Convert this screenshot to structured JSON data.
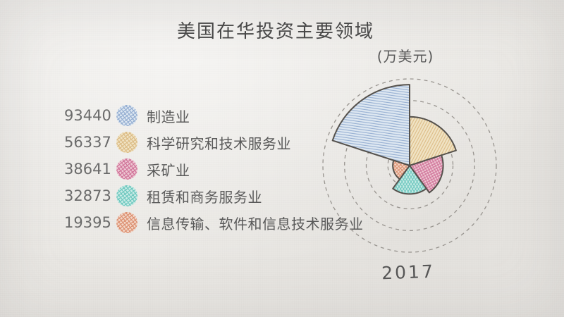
{
  "header": {
    "title": "美国在华投资主要领域",
    "unit_label": "(万美元)",
    "year_label": "2017"
  },
  "colors": {
    "background_paper": "#eae8e4",
    "text_primary": "#474747",
    "text_secondary": "#6b6b6b",
    "wedge_outline": "#55514c",
    "grid_ring": "#98948f"
  },
  "chart_data": {
    "type": "pie",
    "subtype": "nightingale-rose",
    "title": "美国在华投资主要领域",
    "unit": "万美元",
    "year": "2017",
    "legend_position": "left",
    "grid": "dashed-concentric-circles",
    "start_angle_deg": 162,
    "sector_angle_deg": 72,
    "clockwise": true,
    "radial_axis": {
      "max": 100000,
      "interval": 25000,
      "rings": [
        25000,
        50000,
        75000,
        100000
      ],
      "max_radius_px": 123
    },
    "categories": [
      "制造业",
      "科学研究和技术服务业",
      "采矿业",
      "租赁和商务服务业",
      "信息传输、软件和信息技术服务业"
    ],
    "values": [
      93440,
      56337,
      38641,
      32873,
      19395
    ],
    "series": [
      {
        "label": "制造业",
        "value": 93440,
        "base_color": "#dde7f1",
        "hatch_color": "#96afd2",
        "hatch_angles": [
          8
        ]
      },
      {
        "label": "科学研究和技术服务业",
        "value": 56337,
        "base_color": "#f0e3c4",
        "hatch_color": "#dcbc86",
        "hatch_angles": [
          -62
        ]
      },
      {
        "label": "采矿业",
        "value": 38641,
        "base_color": "#edc6d2",
        "hatch_color": "#d1769b",
        "hatch_angles": [
          62,
          -28
        ]
      },
      {
        "label": "租赁和商务服务业",
        "value": 32873,
        "base_color": "#c9ebe6",
        "hatch_color": "#6fc8bf",
        "hatch_angles": [
          58,
          -58
        ]
      },
      {
        "label": "信息传输、软件和信息技术服务业",
        "value": 19395,
        "base_color": "#f2d6c7",
        "hatch_color": "#dc9071",
        "hatch_angles": [
          48,
          -42
        ]
      }
    ]
  }
}
